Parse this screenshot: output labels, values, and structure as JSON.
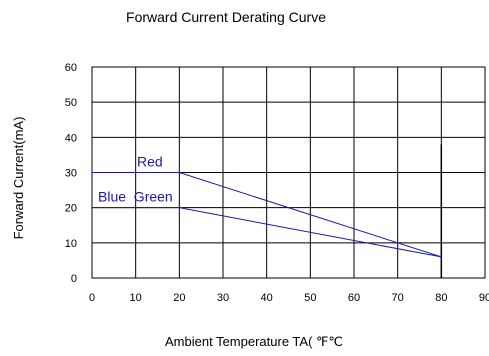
{
  "chart_data": {
    "type": "line",
    "title": "Forward Current Derating Curve",
    "xlabel": "Ambient Temperature TA( ℉℃",
    "ylabel": "Forward Current(mA)",
    "xlim": [
      0,
      90
    ],
    "ylim": [
      0,
      60
    ],
    "xticks": [
      0,
      10,
      20,
      30,
      40,
      50,
      60,
      70,
      80,
      90
    ],
    "yticks": [
      0,
      10,
      20,
      30,
      40,
      50,
      60
    ],
    "grid": true,
    "series": [
      {
        "name": "Red",
        "color": "#1a1aa6",
        "x": [
          0,
          20,
          80
        ],
        "y": [
          30,
          30,
          6
        ]
      },
      {
        "name": "Blue  Green",
        "color": "#1a1aa6",
        "x": [
          0,
          20,
          80
        ],
        "y": [
          20,
          20,
          6
        ]
      }
    ],
    "reference_line": {
      "x": 80,
      "y_from": 0,
      "y_to": 38,
      "color": "#000000"
    }
  }
}
